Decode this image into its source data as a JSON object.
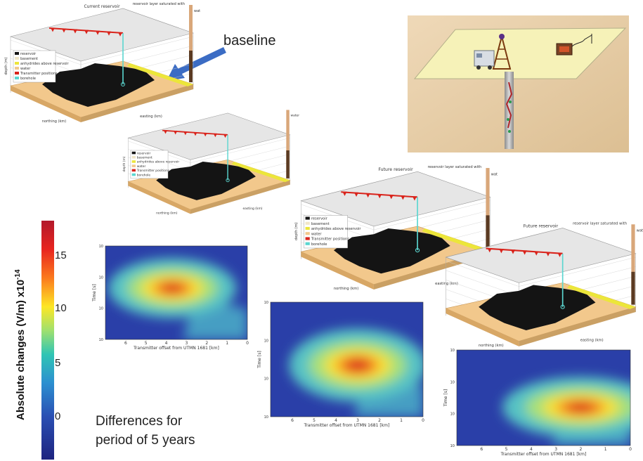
{
  "annotations": {
    "baseline": "baseline",
    "differences_line1": "Differences for",
    "differences_line2": "period of 5 years"
  },
  "colorbar": {
    "title_main": "Absolute changes (V/m) x10",
    "title_exp": "-14",
    "ticks": [
      "15",
      "10",
      "5",
      "0"
    ],
    "colors": [
      "#b2182b",
      "#e8251f",
      "#fb7a1e",
      "#fde725",
      "#9fe06f",
      "#2fc5b4",
      "#2c8fd0",
      "#2a4fb3",
      "#1d237f"
    ]
  },
  "reservoir_models": [
    {
      "title": "Current reservoir",
      "cbar_title": "reservoir layer saturated with",
      "cbar_top": "water",
      "ylabel": "depth (m)",
      "northing": "northing (km)",
      "easting": "easting (km)",
      "legend": [
        "reservoir",
        "basement",
        "anhydrides above reservoir",
        "water",
        "Transmitter positions",
        "borehole"
      ]
    },
    {
      "title": "",
      "cbar_title": "",
      "cbar_top": "water",
      "ylabel": "depth (m)",
      "northing": "northing (km)",
      "easting": "easting (km)",
      "legend": [
        "reservoir",
        "basement",
        "anhydrides above reservoir",
        "water",
        "Transmitter positions",
        "borehole"
      ]
    },
    {
      "title": "Future reservoir",
      "cbar_title": "reservoir layer saturated with",
      "cbar_top": "water",
      "ylabel": "depth (m)",
      "northing": "northing (km)",
      "easting": "easting (km)",
      "legend": [
        "reservoir",
        "basement",
        "anhydrides above reservoir",
        "water",
        "Transmitter positions",
        "borehole"
      ]
    },
    {
      "title": "Future reservoir",
      "cbar_title": "reservoir layer saturated with",
      "cbar_top": "water",
      "ylabel": "",
      "northing": "northing (km)",
      "easting": "easting (km)",
      "legend": []
    }
  ],
  "heatmaps": [
    {
      "xlabel": "Transmitter offset from UTMN 1681 [km]",
      "ylabel": "Time [s]",
      "xticks": [
        "6",
        "5",
        "4",
        "3",
        "2",
        "1",
        "0"
      ],
      "yticks": [
        "10",
        "10",
        "10",
        "10"
      ],
      "peak_offset_km": 3.7,
      "peak_log_time": 0.45
    },
    {
      "xlabel": "Transmitter offset from UTMN 1681 [km]",
      "ylabel": "Time [s]",
      "xticks": [
        "6",
        "5",
        "4",
        "3",
        "2",
        "1",
        "0"
      ],
      "yticks": [
        "10",
        "10",
        "10",
        "10"
      ],
      "peak_offset_km": 3.0,
      "peak_log_time": 0.55
    },
    {
      "xlabel": "Transmitter offset from UTMN 1681 [km]",
      "ylabel": "Time [s]",
      "xticks": [
        "6",
        "5",
        "4",
        "3",
        "2",
        "1",
        "0"
      ],
      "yticks": [
        "10",
        "10",
        "10",
        "10"
      ],
      "peak_offset_km": 2.0,
      "peak_log_time": 0.6
    }
  ],
  "site_illustration": {
    "surface_color": "#f6f2b8",
    "background_color": "#e9cfaa"
  },
  "arrow_color": "#3b6cc4",
  "transmitter_color": "#d9231b",
  "borehole_color": "#5bd6d0"
}
